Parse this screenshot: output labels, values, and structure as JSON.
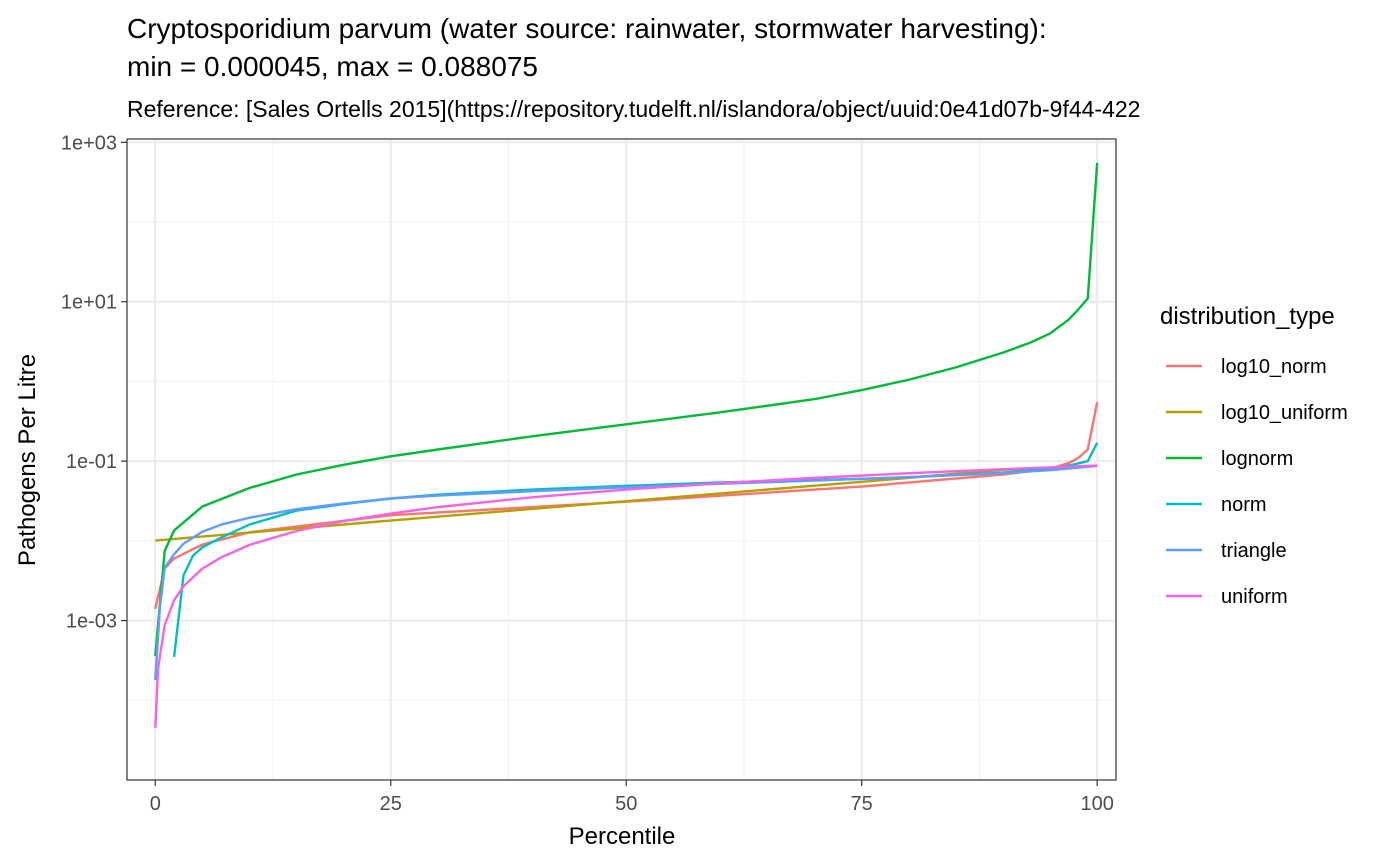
{
  "chart_data": {
    "type": "line",
    "title_line1": "Cryptosporidium parvum (water source: rainwater, stormwater harvesting):",
    "title_line2": "min = 0.000045, max = 0.088075",
    "subtitle": "Reference: [Sales Ortells 2015](https://repository.tudelft.nl/islandora/object/uuid:0e41d07b-9f44-422",
    "xlabel": "Percentile",
    "ylabel": "Pathogens Per Litre",
    "xlim": [
      -3,
      102
    ],
    "ylim": [
      1e-05,
      1100
    ],
    "y_scale": "log10",
    "x_ticks": [
      0,
      25,
      50,
      75,
      100
    ],
    "x_tick_labels": [
      "0",
      "25",
      "50",
      "75",
      "100"
    ],
    "y_ticks": [
      0.001,
      0.1,
      10,
      1000
    ],
    "y_tick_labels": [
      "1e-03",
      "1e-01",
      "1e+01",
      "1e+03"
    ],
    "grid": true,
    "legend": {
      "title": "distribution_type",
      "position": "right"
    },
    "series": [
      {
        "name": "log10_norm",
        "color": "#F8766D",
        "points": [
          [
            0,
            0.0014
          ],
          [
            1,
            0.0045
          ],
          [
            2,
            0.006
          ],
          [
            5,
            0.009
          ],
          [
            10,
            0.0128
          ],
          [
            25,
            0.021
          ],
          [
            50,
            0.031
          ],
          [
            75,
            0.048
          ],
          [
            90,
            0.068
          ],
          [
            95,
            0.08
          ],
          [
            97,
            0.095
          ],
          [
            98,
            0.11
          ],
          [
            99,
            0.14
          ],
          [
            100,
            0.55
          ]
        ]
      },
      {
        "name": "log10_uniform",
        "color": "#B79F00",
        "points": [
          [
            0,
            0.0101
          ],
          [
            25,
            0.018
          ],
          [
            50,
            0.0315
          ],
          [
            75,
            0.055
          ],
          [
            90,
            0.078
          ],
          [
            100,
            0.088
          ]
        ]
      },
      {
        "name": "lognorm",
        "color": "#00BA38",
        "points": [
          [
            0,
            0.00036
          ],
          [
            1,
            0.0075
          ],
          [
            2,
            0.0135
          ],
          [
            5,
            0.027
          ],
          [
            10,
            0.046
          ],
          [
            15,
            0.068
          ],
          [
            20,
            0.09
          ],
          [
            25,
            0.115
          ],
          [
            30,
            0.14
          ],
          [
            40,
            0.205
          ],
          [
            50,
            0.29
          ],
          [
            60,
            0.41
          ],
          [
            70,
            0.6
          ],
          [
            75,
            0.78
          ],
          [
            80,
            1.05
          ],
          [
            85,
            1.5
          ],
          [
            90,
            2.3
          ],
          [
            93,
            3.1
          ],
          [
            95,
            4.0
          ],
          [
            96,
            4.9
          ],
          [
            97,
            6.0
          ],
          [
            98,
            8.0
          ],
          [
            99,
            11.0
          ],
          [
            100,
            550
          ]
        ]
      },
      {
        "name": "norm",
        "color": "#00BFC4",
        "points": [
          [
            2,
            0.00035
          ],
          [
            3,
            0.0037
          ],
          [
            4,
            0.0065
          ],
          [
            5,
            0.0083
          ],
          [
            7,
            0.011
          ],
          [
            10,
            0.016
          ],
          [
            15,
            0.024
          ],
          [
            20,
            0.029
          ],
          [
            25,
            0.034
          ],
          [
            30,
            0.038
          ],
          [
            40,
            0.044
          ],
          [
            50,
            0.049
          ],
          [
            60,
            0.054
          ],
          [
            70,
            0.058
          ],
          [
            75,
            0.06
          ],
          [
            80,
            0.063
          ],
          [
            90,
            0.072
          ],
          [
            95,
            0.08
          ],
          [
            97,
            0.088
          ],
          [
            99,
            0.1
          ],
          [
            100,
            0.17
          ]
        ]
      },
      {
        "name": "triangle",
        "color": "#619CFF",
        "points": [
          [
            0,
            0.00018
          ],
          [
            0.5,
            0.0015
          ],
          [
            1,
            0.0046
          ],
          [
            2,
            0.0068
          ],
          [
            3,
            0.0092
          ],
          [
            5,
            0.013
          ],
          [
            7,
            0.016
          ],
          [
            10,
            0.0195
          ],
          [
            15,
            0.025
          ],
          [
            20,
            0.0295
          ],
          [
            25,
            0.034
          ],
          [
            30,
            0.037
          ],
          [
            40,
            0.042
          ],
          [
            50,
            0.047
          ],
          [
            60,
            0.052
          ],
          [
            70,
            0.057
          ],
          [
            80,
            0.063
          ],
          [
            90,
            0.071
          ],
          [
            95,
            0.077
          ],
          [
            100,
            0.087
          ]
        ]
      },
      {
        "name": "uniform",
        "color": "#F564E3",
        "points": [
          [
            0,
            4.5e-05
          ],
          [
            0.3,
            0.00025
          ],
          [
            1,
            0.00088
          ],
          [
            2,
            0.0018
          ],
          [
            3,
            0.0027
          ],
          [
            5,
            0.0045
          ],
          [
            7,
            0.0062
          ],
          [
            10,
            0.0089
          ],
          [
            15,
            0.0133
          ],
          [
            20,
            0.0177
          ],
          [
            25,
            0.022
          ],
          [
            30,
            0.0265
          ],
          [
            40,
            0.0352
          ],
          [
            50,
            0.044
          ],
          [
            60,
            0.0529
          ],
          [
            70,
            0.0617
          ],
          [
            80,
            0.0705
          ],
          [
            90,
            0.0793
          ],
          [
            100,
            0.088
          ]
        ]
      }
    ]
  }
}
